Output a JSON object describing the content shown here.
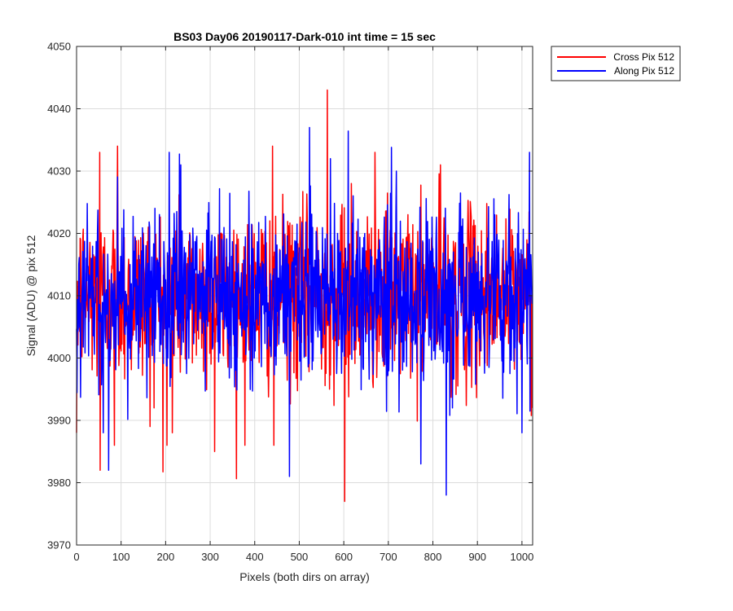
{
  "chart_data": {
    "type": "line",
    "title": "BS03 Day06 20190117-Dark-010 int time = 15 sec",
    "xlabel": "Pixels (both dirs on array)",
    "ylabel": "Signal (ADU) @ pix 512",
    "xlim": [
      0,
      1024
    ],
    "ylim": [
      3970,
      4050
    ],
    "xticks": [
      0,
      100,
      200,
      300,
      400,
      500,
      600,
      700,
      800,
      900,
      1000
    ],
    "yticks": [
      3970,
      3980,
      3990,
      4000,
      4010,
      4020,
      4030,
      4040,
      4050
    ],
    "grid": true,
    "legend_position": "outside-top-right",
    "series": [
      {
        "name": "Cross Pix 512",
        "color": "#ff0000",
        "mean": 4010,
        "approx_std": 7,
        "num_points": 1024,
        "notable_points": [
          {
            "x": 0,
            "y": 3988
          },
          {
            "x": 52,
            "y": 4033
          },
          {
            "x": 53,
            "y": 3982
          },
          {
            "x": 85,
            "y": 3986
          },
          {
            "x": 92,
            "y": 4034
          },
          {
            "x": 165,
            "y": 3989
          },
          {
            "x": 203,
            "y": 3986
          },
          {
            "x": 215,
            "y": 3988
          },
          {
            "x": 310,
            "y": 3985
          },
          {
            "x": 378,
            "y": 3986
          },
          {
            "x": 440,
            "y": 4034
          },
          {
            "x": 443,
            "y": 3986
          },
          {
            "x": 563,
            "y": 4043
          },
          {
            "x": 602,
            "y": 3977
          },
          {
            "x": 617,
            "y": 4028
          },
          {
            "x": 670,
            "y": 4033
          },
          {
            "x": 817,
            "y": 4031
          },
          {
            "x": 1023,
            "y": 3992
          }
        ]
      },
      {
        "name": "Along Pix 512",
        "color": "#0000ff",
        "mean": 4010,
        "approx_std": 7,
        "num_points": 1024,
        "notable_points": [
          {
            "x": 60,
            "y": 3988
          },
          {
            "x": 72,
            "y": 3982
          },
          {
            "x": 208,
            "y": 4033
          },
          {
            "x": 234,
            "y": 4031
          },
          {
            "x": 478,
            "y": 3981
          },
          {
            "x": 523,
            "y": 4037
          },
          {
            "x": 570,
            "y": 4032
          },
          {
            "x": 718,
            "y": 4030
          },
          {
            "x": 773,
            "y": 3983
          },
          {
            "x": 830,
            "y": 3978
          },
          {
            "x": 1000,
            "y": 3988
          },
          {
            "x": 1017,
            "y": 4033
          }
        ]
      }
    ]
  }
}
